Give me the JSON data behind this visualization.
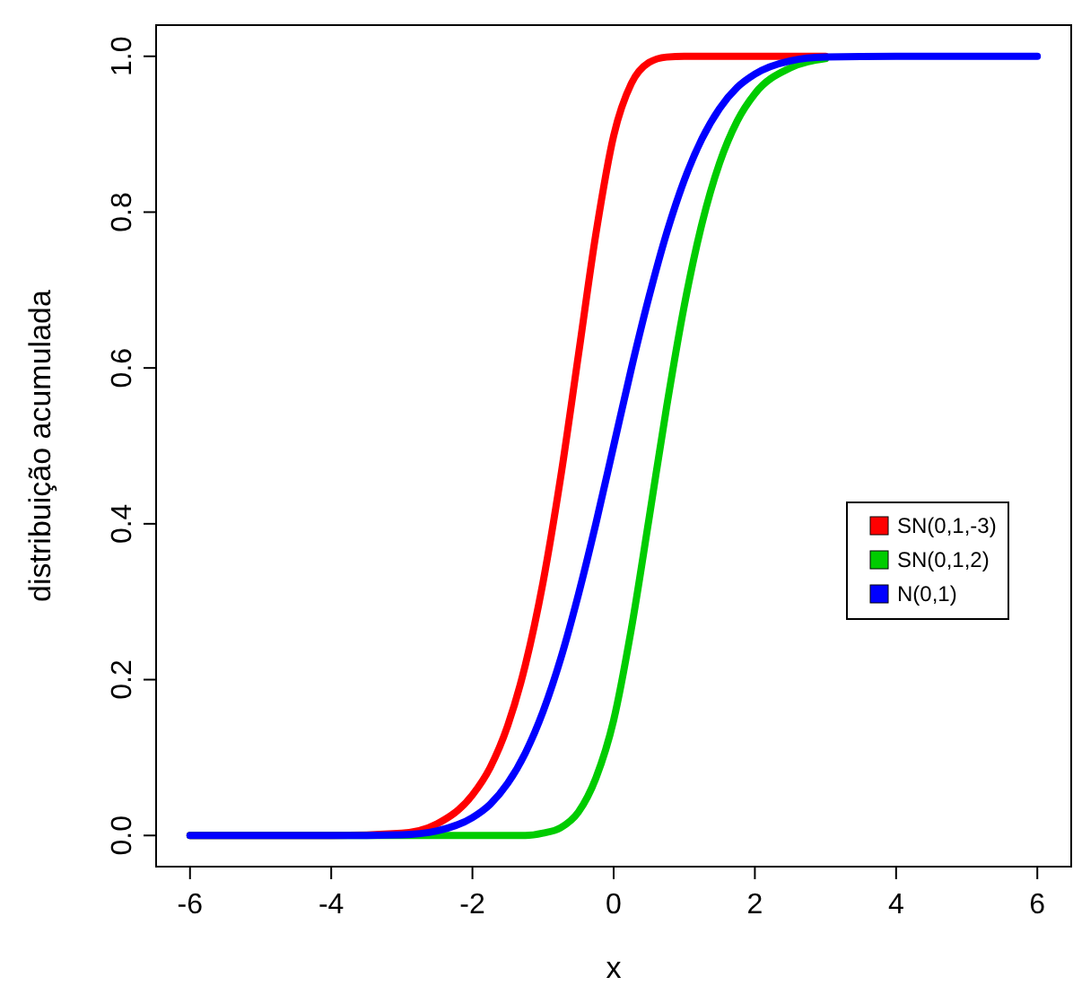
{
  "chart_data": {
    "type": "line",
    "xlabel": "x",
    "ylabel": "distribuição acumulada",
    "xlim": [
      -6.48,
      6.48
    ],
    "ylim": [
      -0.04,
      1.04
    ],
    "xticks": [
      -6,
      -4,
      -2,
      0,
      2,
      4,
      6
    ],
    "yticks": [
      {
        "value": 0,
        "label": "0.0"
      },
      {
        "value": 0.2,
        "label": "0.2"
      },
      {
        "value": 0.4,
        "label": "0.4"
      },
      {
        "value": 0.6,
        "label": "0.6"
      },
      {
        "value": 0.8,
        "label": "0.8"
      },
      {
        "value": 1,
        "label": "1.0"
      }
    ],
    "x": [
      -6,
      -4,
      -3,
      -2.5,
      -2,
      -1.75,
      -1.5,
      -1.25,
      -1,
      -0.75,
      -0.5,
      -0.25,
      0,
      0.25,
      0.5,
      0.75,
      1,
      1.25,
      1.5,
      1.75,
      2,
      2.5,
      3,
      4,
      6
    ],
    "series": [
      {
        "name": "SN(0,1,-3)",
        "color": "#ff0000",
        "values": [
          0,
          0,
          0.003,
          0.015,
          0.052,
          0.087,
          0.141,
          0.219,
          0.325,
          0.46,
          0.616,
          0.773,
          0.898,
          0.965,
          0.992,
          0.999,
          1,
          1,
          1,
          1,
          1,
          1,
          1,
          null,
          null
        ]
      },
      {
        "name": "SN(0,1,2)",
        "color": "#00cc00",
        "values": [
          0,
          0,
          0,
          0,
          0,
          0,
          0,
          0,
          0.003,
          0.01,
          0.03,
          0.074,
          0.148,
          0.265,
          0.406,
          0.55,
          0.68,
          0.785,
          0.863,
          0.917,
          0.952,
          0.985,
          0.997,
          null,
          null
        ]
      },
      {
        "name": "N(0,1)",
        "color": "#0000ff",
        "values": [
          0,
          0,
          0.001,
          0.006,
          0.023,
          0.04,
          0.067,
          0.106,
          0.159,
          0.227,
          0.309,
          0.401,
          0.5,
          0.599,
          0.691,
          0.773,
          0.841,
          0.894,
          0.933,
          0.96,
          0.977,
          0.994,
          0.999,
          1,
          1
        ]
      }
    ],
    "legend": "right",
    "grid": false,
    "marker": "none",
    "line_style": "solid"
  }
}
